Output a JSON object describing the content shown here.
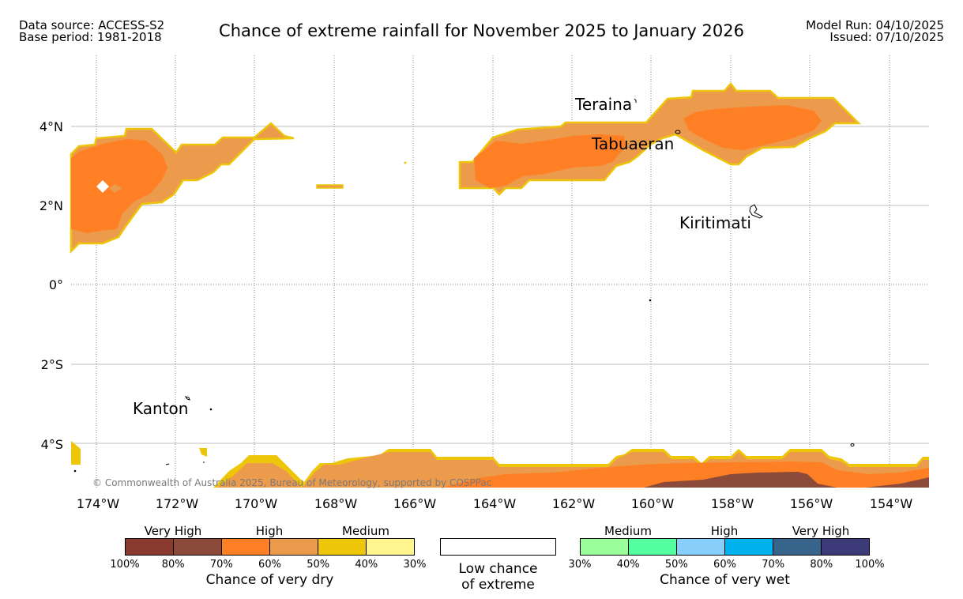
{
  "header": {
    "data_source": "Data source: ACCESS-S2",
    "base_period": "Base period: 1981-2018",
    "title": "Chance of extreme rainfall for November 2025 to January 2026",
    "model_run": "Model Run: 04/10/2025",
    "issued": "Issued: 07/10/2025"
  },
  "map": {
    "lat_labels": [
      "4°N",
      "2°N",
      "0°",
      "2°S",
      "4°S"
    ],
    "lon_labels": [
      "174°W",
      "172°W",
      "170°W",
      "168°W",
      "166°W",
      "164°W",
      "162°W",
      "160°W",
      "158°W",
      "156°W",
      "154°W"
    ],
    "places": [
      "Teraina",
      "Tabuaeran",
      "Kiritimati",
      "Kanton"
    ],
    "copyright": "© Commonwealth of Australia 2025, Bureau of Meteorology, supported by COSPPac"
  },
  "legend": {
    "dry": {
      "groups": [
        "Very High",
        "High",
        "Medium"
      ],
      "colors": [
        "#8b3a30",
        "#8b4a3a",
        "#ff7f24",
        "#ec9a4b",
        "#edc60a",
        "#fff68f"
      ],
      "ticks": [
        "100%",
        "80%",
        "70%",
        "60%",
        "50%",
        "40%",
        "30%"
      ],
      "title": "Chance of very dry"
    },
    "low": {
      "line1": "Low chance",
      "line2": "of extreme"
    },
    "wet": {
      "groups": [
        "Medium",
        "High",
        "Very High"
      ],
      "colors": [
        "#9aff9a",
        "#54ff9f",
        "#87cefa",
        "#00b2ee",
        "#36648b",
        "#3d3a7a"
      ],
      "ticks": [
        "30%",
        "40%",
        "50%",
        "60%",
        "70%",
        "80%",
        "100%"
      ],
      "title": "Chance of very wet"
    }
  }
}
